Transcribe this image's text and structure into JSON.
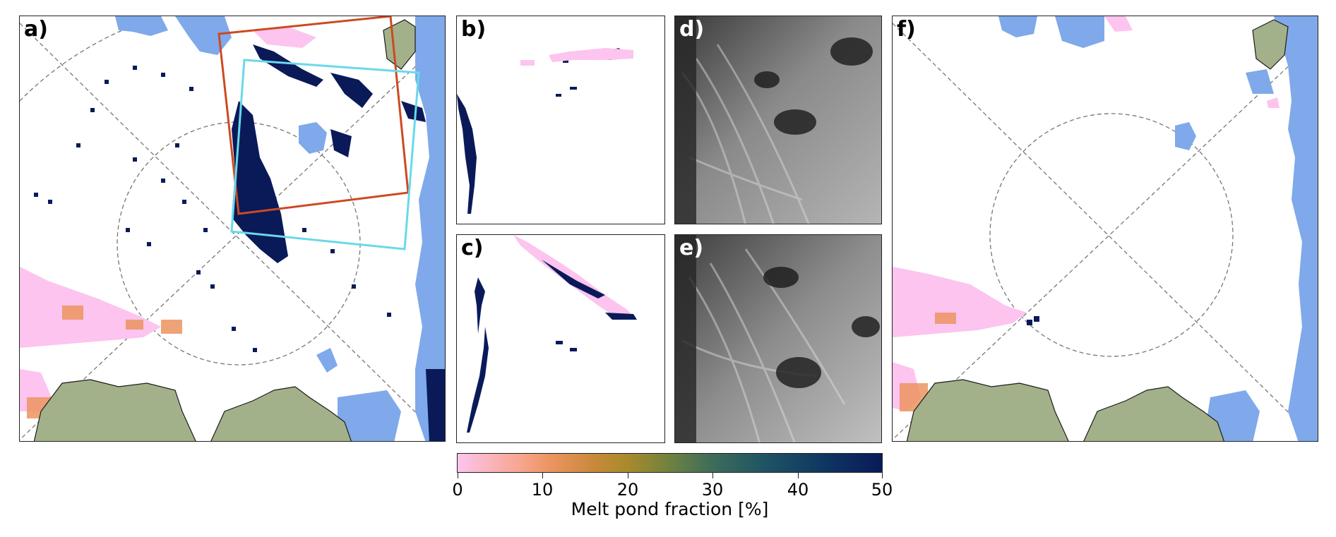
{
  "panels": {
    "a": {
      "label": "a)"
    },
    "b": {
      "label": "b)"
    },
    "c": {
      "label": "c)"
    },
    "d": {
      "label": "d)"
    },
    "e": {
      "label": "e)"
    },
    "f": {
      "label": "f)"
    }
  },
  "colorbar": {
    "title": "Melt pond fraction [%]",
    "ticks": [
      "0",
      "10",
      "20",
      "30",
      "40",
      "50"
    ],
    "range": [
      0,
      50
    ],
    "colors": [
      "#fcc4ee",
      "#f7a58c",
      "#c8893b",
      "#6e8240",
      "#1f5563",
      "#0a1a59"
    ]
  },
  "legend_colors": {
    "land": "#a3b18a",
    "open_water": "#7fa9ea",
    "high_melt": "#0a1a59",
    "low_melt": "#fcc4ee",
    "overlay_box_red": "#cc4a22",
    "overlay_box_cyan": "#6ad9ea",
    "graticule": "#777777"
  }
}
